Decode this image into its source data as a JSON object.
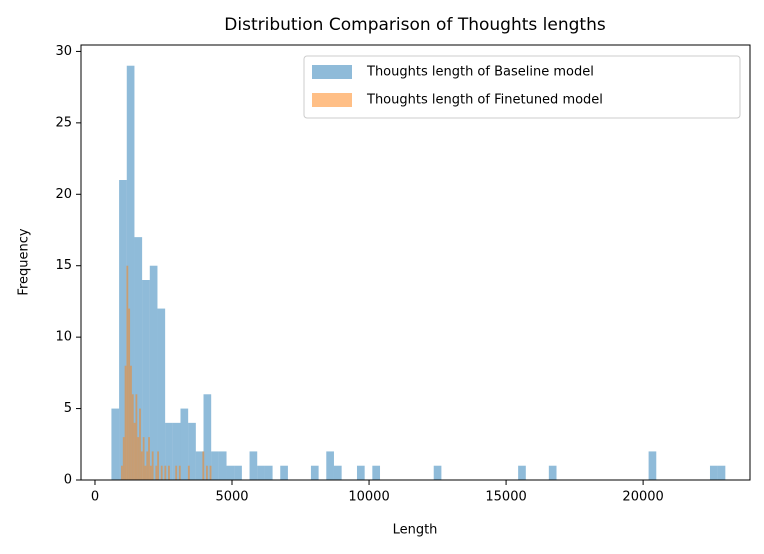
{
  "chart_data": {
    "type": "histogram",
    "title": "Distribution Comparison of Thoughts lengths",
    "x_label": "Length",
    "y_label": "Frequency",
    "xlim": [
      -510,
      23900
    ],
    "xticks": [
      0,
      5000,
      10000,
      15000,
      20000
    ],
    "ylim": [
      0,
      30.45
    ],
    "yticks": [
      0,
      5,
      10,
      15,
      20,
      25,
      30
    ],
    "opacity": 0.5,
    "legend": "upper right",
    "series": [
      {
        "name": "Thoughts length of Baseline model",
        "color": "#1f77b4",
        "bins": [
          600,
          880,
          1160,
          1440,
          1720,
          2000,
          2280,
          2560,
          2840,
          3120,
          3400,
          3680,
          3960,
          4240,
          4520,
          4800,
          5080,
          5360,
          5640,
          5920,
          6200,
          6480,
          6760,
          7040,
          7320,
          7600,
          7880,
          8160,
          8440,
          8720,
          9000,
          9280,
          9560,
          9840,
          10120,
          10400,
          10680,
          10960,
          11240,
          11520,
          11800,
          12080,
          12360,
          12640,
          12920,
          13200,
          13480,
          13760,
          14040,
          14320,
          14600,
          14880,
          15160,
          15440,
          15720,
          16000,
          16280,
          16560,
          16840,
          17120,
          17400,
          17680,
          17960,
          18240,
          18520,
          18800,
          19080,
          19360,
          19640,
          19920,
          20200,
          20480,
          20760,
          21040,
          21320,
          21600,
          21880,
          22160,
          22440,
          22720,
          23000
        ],
        "values": [
          5,
          21,
          29,
          17,
          14,
          15,
          12,
          4,
          4,
          5,
          4,
          2,
          6,
          2,
          2,
          1,
          1,
          0,
          2,
          1,
          1,
          0,
          1,
          0,
          0,
          0,
          1,
          0,
          2,
          1,
          0,
          0,
          1,
          0,
          1,
          0,
          0,
          0,
          0,
          0,
          0,
          0,
          1,
          0,
          0,
          0,
          0,
          0,
          0,
          0,
          0,
          0,
          0,
          1,
          0,
          0,
          0,
          1,
          0,
          0,
          0,
          0,
          0,
          0,
          0,
          0,
          0,
          0,
          0,
          0,
          2,
          0,
          0,
          0,
          0,
          0,
          0,
          0,
          1,
          1
        ]
      },
      {
        "name": "Thoughts length of Finetuned model",
        "color": "#ff7f0e",
        "bins": [
          950,
          1016,
          1082,
          1148,
          1214,
          1280,
          1346,
          1412,
          1478,
          1544,
          1610,
          1676,
          1742,
          1808,
          1874,
          1940,
          2006,
          2072,
          2138,
          2204,
          2270,
          2336,
          2402,
          2468,
          2534,
          2600,
          2666,
          2732,
          2798,
          2864,
          2930,
          2996,
          3062,
          3128,
          3194,
          3260,
          3326,
          3392,
          3458,
          3524,
          3590,
          3656,
          3722,
          3788,
          3854,
          3920,
          3986,
          4052,
          4118,
          4184,
          4250
        ],
        "values": [
          1,
          3,
          8,
          15,
          12,
          8,
          6,
          4,
          6,
          3,
          5,
          2,
          3,
          1,
          2,
          3,
          1,
          2,
          0,
          1,
          2,
          0,
          1,
          0,
          1,
          0,
          1,
          0,
          0,
          0,
          1,
          0,
          1,
          0,
          0,
          0,
          0,
          1,
          0,
          0,
          0,
          0,
          0,
          0,
          0,
          2,
          0,
          1,
          0,
          1
        ]
      }
    ]
  }
}
